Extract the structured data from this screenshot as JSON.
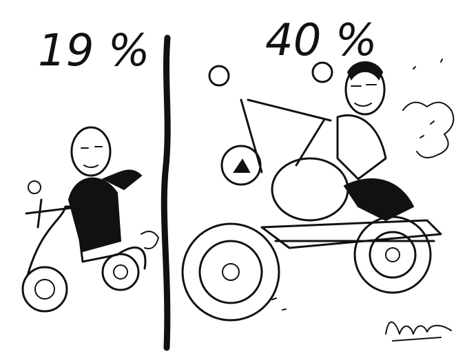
{
  "panels": [
    {
      "label": "19 %"
    },
    {
      "label": "40 %"
    }
  ]
}
